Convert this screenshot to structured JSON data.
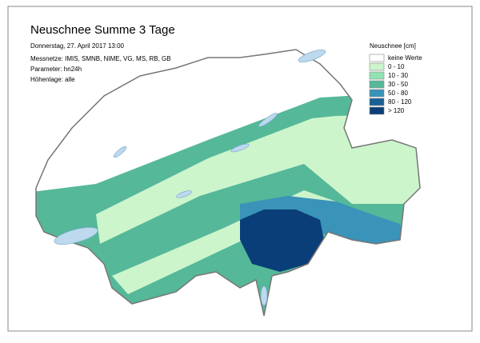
{
  "header": {
    "title": "Neuschnee Summe 3 Tage",
    "lines": [
      "Donnerstag, 27. April 2017 13:00",
      "Messnetze: IMIS, SMNB, NIME, VG, MS, RB, GB",
      "Parameter: hn24h",
      "Höhenlage: alle"
    ]
  },
  "legend": {
    "title": "Neuschnee [cm]",
    "items": [
      {
        "label": "keine Werte",
        "color": "#ffffff"
      },
      {
        "label": "0 - 10",
        "color": "#ccf5cc"
      },
      {
        "label": "10 - 30",
        "color": "#92e3b2"
      },
      {
        "label": "30 - 50",
        "color": "#55b899"
      },
      {
        "label": "50 - 80",
        "color": "#3a93b8"
      },
      {
        "label": "80 - 120",
        "color": "#1a5f96"
      },
      {
        "label": "> 120",
        "color": "#0a3e78"
      }
    ]
  }
}
